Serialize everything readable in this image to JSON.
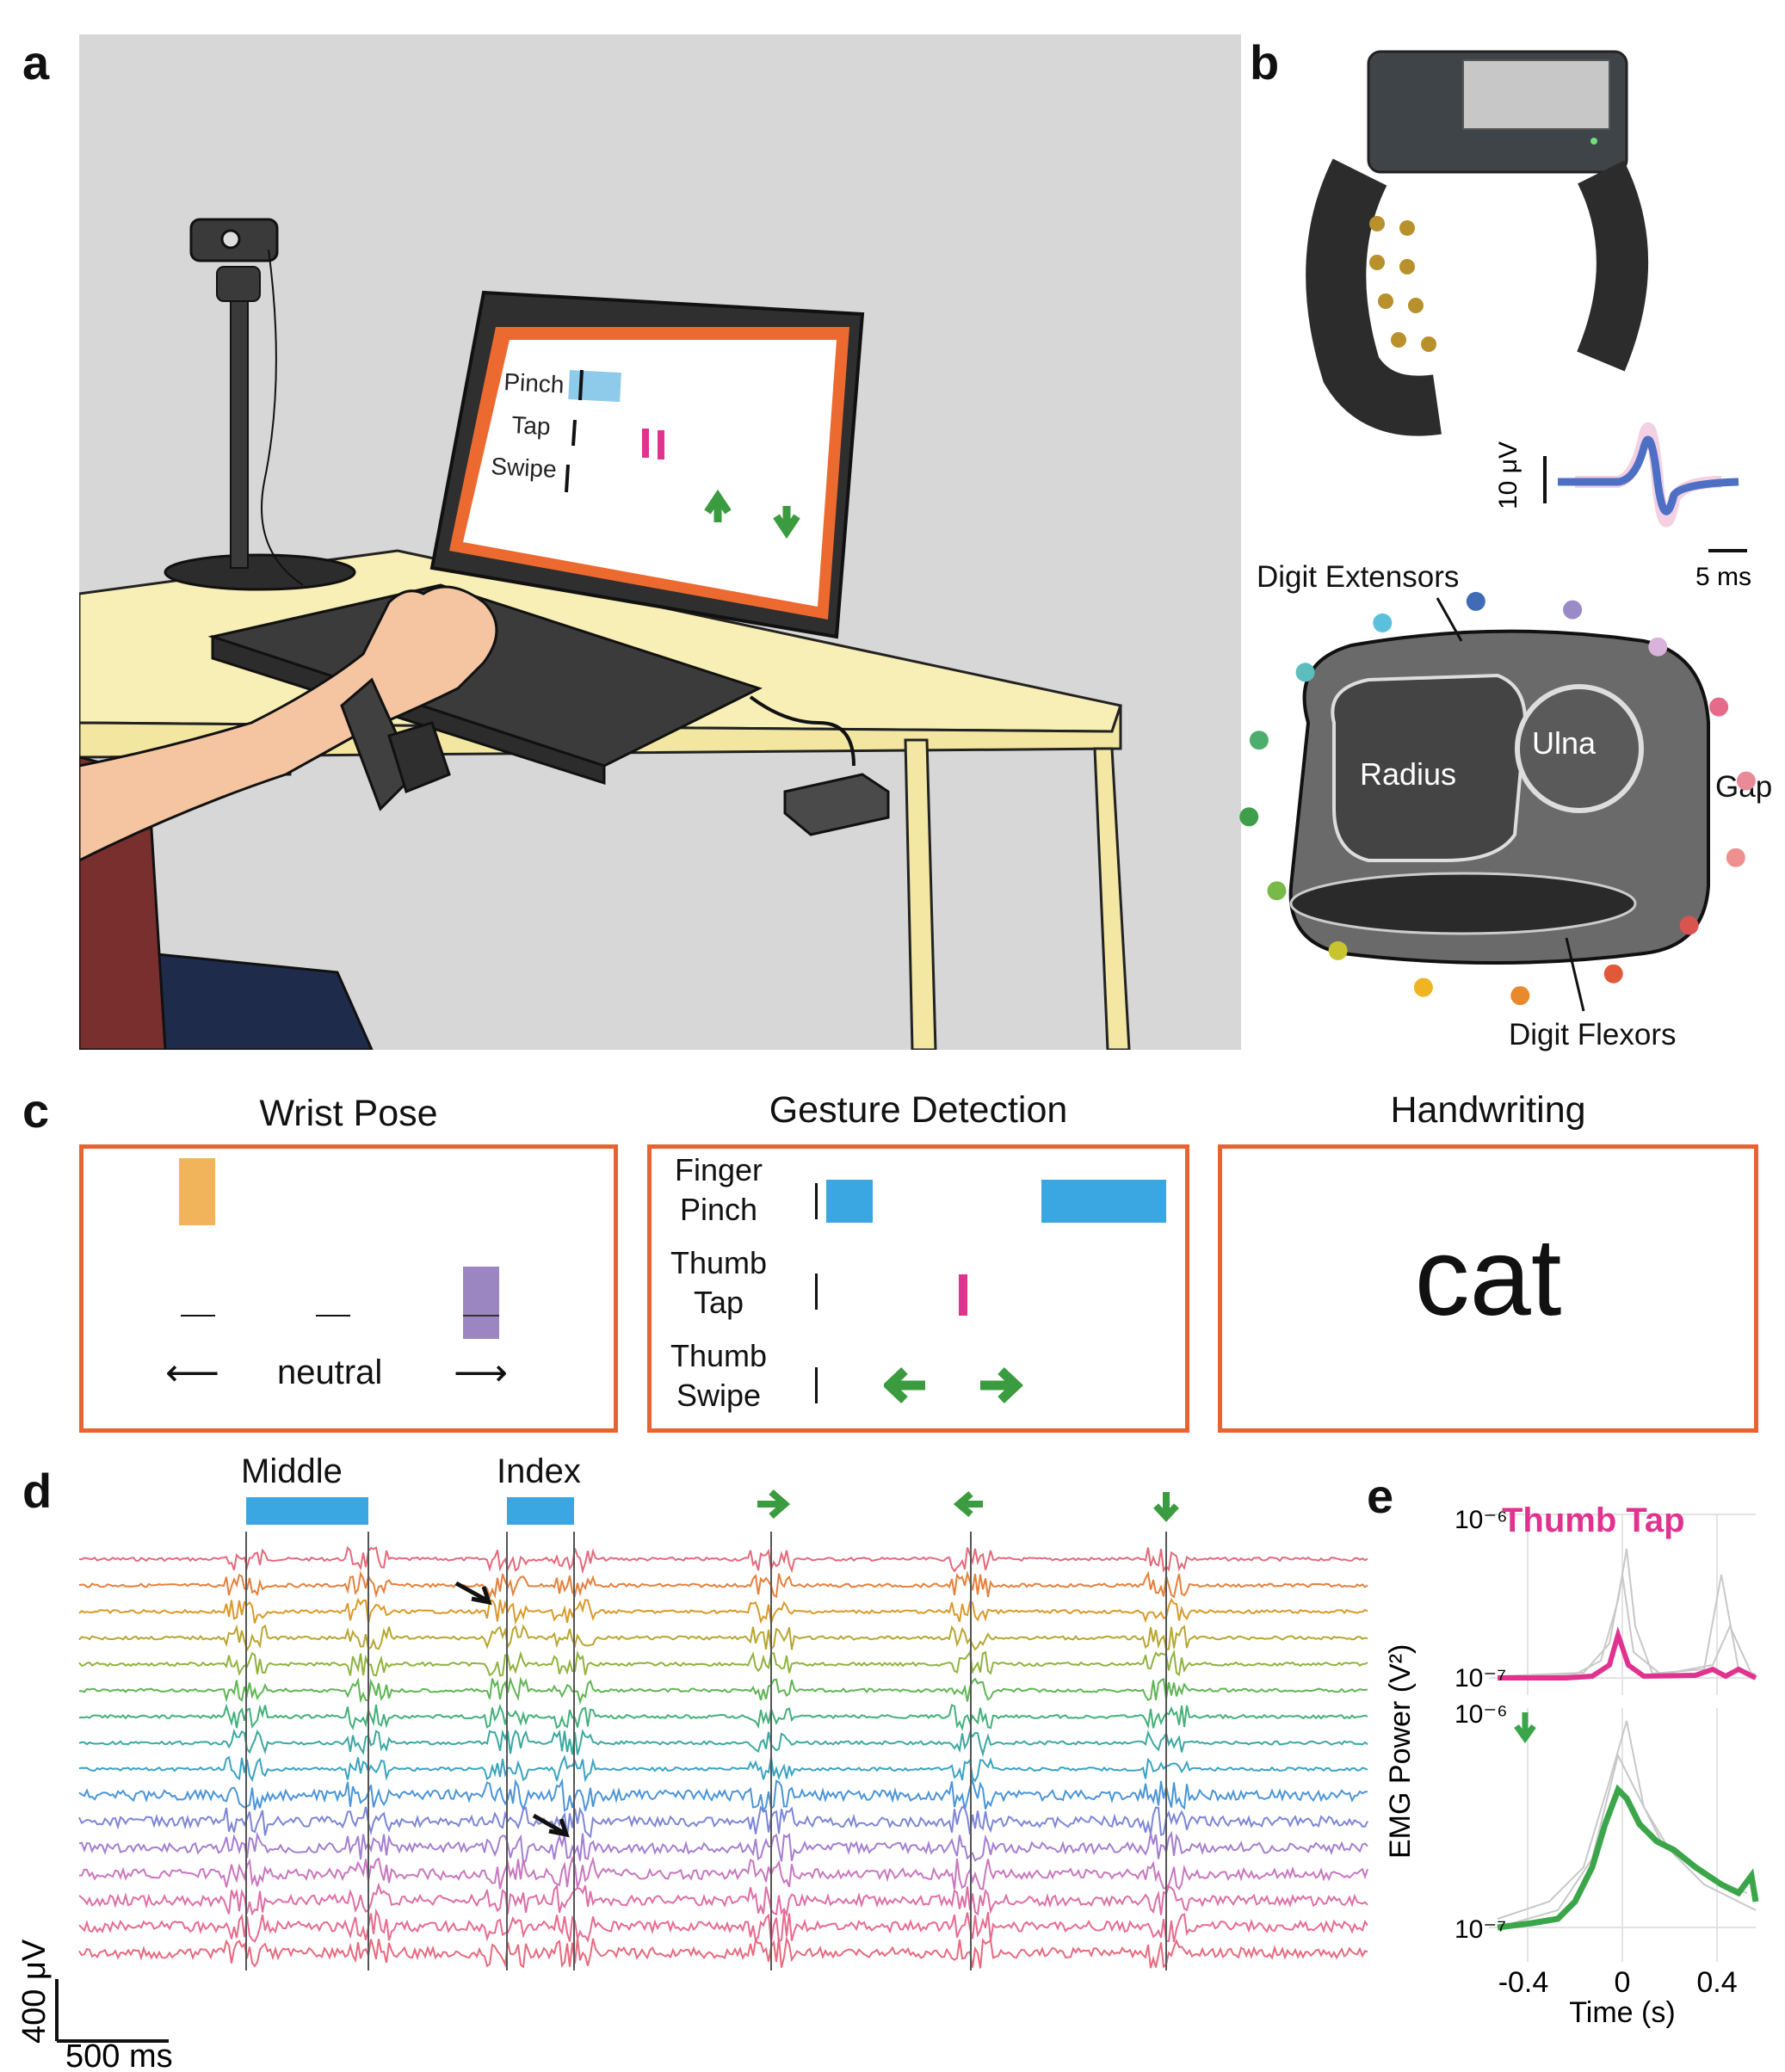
{
  "panels": {
    "a": "a",
    "b": "b",
    "c": "c",
    "d": "d",
    "e": "e"
  },
  "panel_a": {
    "screen_labels": [
      "Pinch",
      "Tap",
      "Swipe"
    ]
  },
  "panel_b": {
    "scale_voltage": "10 μV",
    "scale_time": "5 ms",
    "anatomy_labels": {
      "extensors": "Digit Extensors",
      "flexors": "Digit Flexors",
      "radius": "Radius",
      "ulna": "Ulna",
      "gap": "Gap"
    },
    "electrode_colors": [
      "#5bc0de",
      "#3f6cb4",
      "#9a8ac8",
      "#d9b3d9",
      "#e66a8a",
      "#e88a98",
      "#ef8f8f",
      "#d9534f",
      "#e05a3a",
      "#e8892b",
      "#f0b322",
      "#c7c42e",
      "#79b94a",
      "#3e9e4a",
      "#4cae6c",
      "#5cbdbd"
    ]
  },
  "panel_c": {
    "wrist_pose": {
      "title": "Wrist Pose",
      "label": "neutral",
      "left_arrow": "⟵",
      "right_arrow": "⟶"
    },
    "gesture_detection": {
      "title": "Gesture Detection",
      "rows": [
        {
          "line1": "Finger",
          "line2": "Pinch"
        },
        {
          "line1": "Thumb",
          "line2": "Tap"
        },
        {
          "line1": "Thumb",
          "line2": "Swipe"
        }
      ]
    },
    "handwriting": {
      "title": "Handwriting",
      "text": "cat"
    }
  },
  "panel_d": {
    "labels": {
      "middle": "Middle",
      "index": "Index"
    },
    "scale_voltage": "400 μV",
    "scale_time": "500 ms",
    "channel_count": 16,
    "channel_colors": [
      "#e5697a",
      "#e4803c",
      "#d99a2a",
      "#b8a631",
      "#8fb33d",
      "#5fb554",
      "#43b07a",
      "#3aa9a0",
      "#3aa3c0",
      "#4b95d8",
      "#7d86d6",
      "#a57fcf",
      "#c877bf",
      "#dd6fa6",
      "#e76b8f",
      "#e8697e"
    ]
  },
  "panel_e": {
    "title": "Thumb Tap",
    "title_color": "#e0338f",
    "ylabel": "EMG Power (V²)",
    "xlabel": "Time (s)",
    "ytick_top": "10⁻⁶",
    "ytick_bottom": "10⁻⁷",
    "xticks": [
      "-0.4",
      "0",
      "0.4"
    ]
  }
}
